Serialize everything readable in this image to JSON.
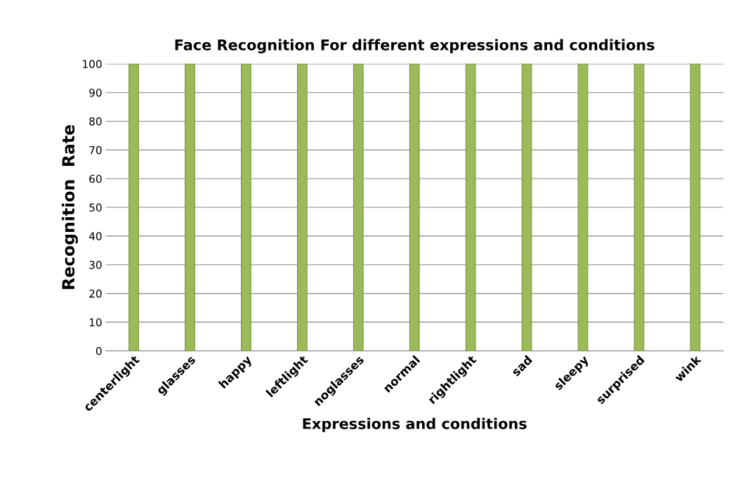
{
  "chart_data": {
    "type": "bar",
    "title": "Face Recognition For different expressions and conditions",
    "xlabel": "Expressions and conditions",
    "ylabel": "Recognition  Rate",
    "categories": [
      "centerlight",
      "glasses",
      "happy",
      "leftlight",
      "noglasses",
      "normal",
      "rightlight",
      "sad",
      "sleepy",
      "surprised",
      "wink"
    ],
    "values": [
      100,
      100,
      100,
      100,
      100,
      100,
      100,
      100,
      100,
      100,
      100
    ],
    "color": "#9bbb59",
    "ylim": [
      0,
      100
    ],
    "yticks": [
      0,
      10,
      20,
      30,
      40,
      50,
      60,
      70,
      80,
      90,
      100
    ],
    "grid": "y"
  }
}
